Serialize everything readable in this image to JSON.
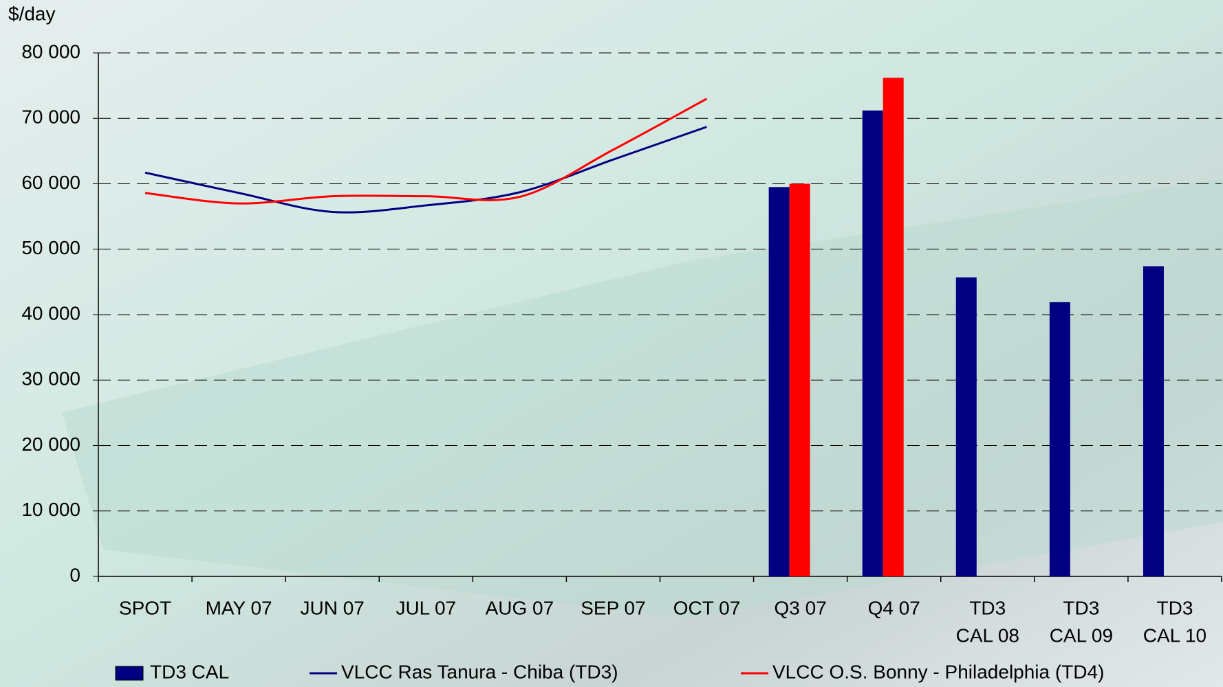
{
  "chart_data": {
    "type": "combo",
    "y_label": "$/day",
    "categories": [
      "SPOT",
      "MAY 07",
      "JUN 07",
      "JUL 07",
      "AUG 07",
      "SEP 07",
      "OCT 07",
      "Q3 07",
      "Q4 07",
      [
        "TD3",
        "CAL 08"
      ],
      [
        "TD3",
        "CAL 09"
      ],
      [
        "TD3",
        "CAL 10"
      ]
    ],
    "ylim": [
      0,
      80000
    ],
    "yticks": [
      {
        "value": 0,
        "label": "0"
      },
      {
        "value": 10000,
        "label": "10 000"
      },
      {
        "value": 20000,
        "label": "20 000"
      },
      {
        "value": 30000,
        "label": "30 000"
      },
      {
        "value": 40000,
        "label": "40 000"
      },
      {
        "value": 50000,
        "label": "50 000"
      },
      {
        "value": 60000,
        "label": "60 000"
      },
      {
        "value": 70000,
        "label": "70 000"
      },
      {
        "value": 80000,
        "label": "80 000"
      }
    ],
    "grid": true,
    "series": [
      {
        "name": "TD3 CAL",
        "kind": "bar",
        "color": "#000080",
        "values": [
          null,
          null,
          null,
          null,
          null,
          null,
          null,
          59500,
          71200,
          45700,
          41900,
          47400
        ]
      },
      {
        "name": "VLCC Ras Tanura - Chiba (TD3)",
        "kind": "line",
        "color": "#000080",
        "values": [
          61700,
          58600,
          55700,
          56700,
          58700,
          63700,
          68700,
          null,
          null,
          null,
          null,
          null
        ]
      },
      {
        "name": "VLCC O.S. Bonny - Philadelphia (TD4)",
        "kind": "line",
        "color": "#ff0000",
        "values": [
          58600,
          57000,
          58100,
          58100,
          58000,
          65200,
          73000,
          null,
          null,
          null,
          null,
          null
        ],
        "bar_values": [
          null,
          null,
          null,
          null,
          null,
          null,
          null,
          60000,
          76200,
          null,
          null,
          null
        ]
      }
    ]
  }
}
